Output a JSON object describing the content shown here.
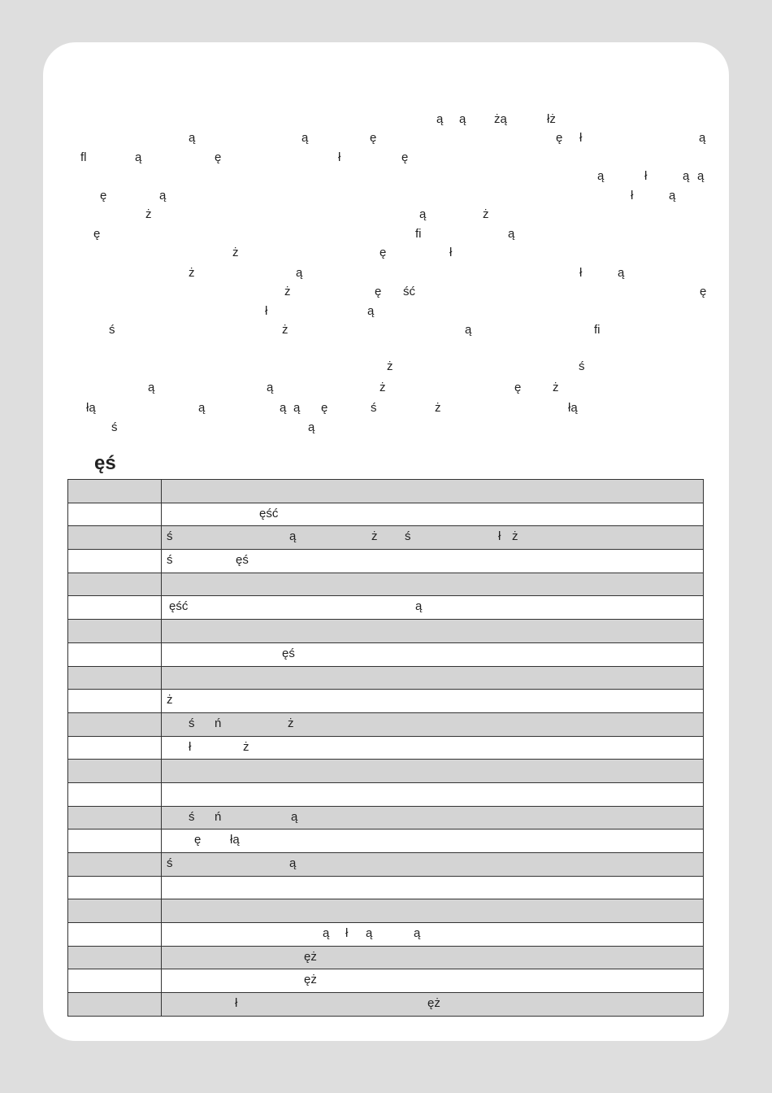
{
  "body": {
    "paragraphs": [
      [
        [
          "ą",
          "ą",
          "żą",
          "łż"
        ],
        [
          "ą",
          "ą",
          "ę",
          "ę",
          "ł",
          "ą"
        ],
        [
          "fl",
          "ą",
          "ę",
          "ł",
          "ę"
        ],
        [
          "ą",
          "ł",
          "ą",
          "ą"
        ],
        [
          "ę",
          "ą",
          "ł",
          "ą"
        ],
        [
          "ż",
          "ą",
          "ż"
        ],
        [
          "ę",
          "fi",
          "ą"
        ],
        [
          "ż",
          "ę",
          "ł"
        ],
        [
          "ż",
          "ą",
          "ł",
          "ą"
        ],
        [
          "ż",
          "ę",
          "ść",
          "ę"
        ],
        [
          "ł",
          "ą"
        ],
        [
          "ś",
          "ż",
          "ą",
          "fi"
        ]
      ],
      [
        [
          "ż",
          "ś"
        ],
        [
          "ą",
          "ą",
          "ż",
          "ę",
          "ż"
        ],
        [
          "łą",
          "ą",
          "ą",
          "ą",
          "ę",
          "ś",
          "ż",
          "łą"
        ],
        [
          "ś",
          "ą"
        ]
      ]
    ]
  },
  "section": {
    "heading": "ęś",
    "table_rows": [
      [],
      [
        "ęść"
      ],
      [
        "ś",
        "ą",
        "ż",
        "ś",
        "ł",
        "ż"
      ],
      [
        "ś",
        "ęś"
      ],
      [],
      [
        "ęść",
        "ą"
      ],
      [],
      [
        "ęś"
      ],
      [],
      [
        "ż"
      ],
      [
        "ś",
        "ń",
        "ż"
      ],
      [
        "ł",
        "ż"
      ],
      [],
      [],
      [
        "ś",
        "ń",
        "ą"
      ],
      [
        "ę",
        "łą"
      ],
      [
        "ś",
        "ą"
      ],
      [],
      [],
      [
        "ą",
        "ł",
        "ą",
        "ą"
      ],
      [
        "ęż"
      ],
      [
        "ęż"
      ],
      [
        "ł",
        "ęż"
      ]
    ]
  }
}
